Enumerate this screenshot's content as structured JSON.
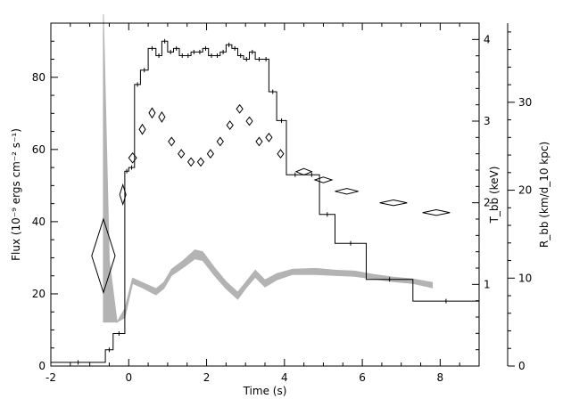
{
  "chart_data": {
    "type": "line",
    "xlabel": "Time (s)",
    "xlim": [
      -2,
      9
    ],
    "x_ticks": [
      -2,
      0,
      2,
      4,
      6,
      8
    ],
    "axes": {
      "flux": {
        "label": "Flux (10⁻⁹ ergs cm⁻² s⁻¹)",
        "lim": [
          0,
          95
        ],
        "ticks": [
          0,
          20,
          40,
          60,
          80
        ]
      },
      "tbb": {
        "label": "T_bb (keV)",
        "lim": [
          0,
          4.2
        ],
        "ticks": [
          1,
          2,
          3,
          4
        ]
      },
      "rbb": {
        "label": "R_bb (km/d_10 kpc)",
        "lim": [
          0,
          39
        ],
        "ticks": [
          0,
          10,
          20,
          30
        ]
      }
    },
    "series": [
      {
        "style": "histogram",
        "axis": "flux",
        "color": "#000000",
        "points": [
          [
            -2.0,
            -0.6,
            1
          ],
          [
            -0.6,
            -0.4,
            4.5
          ],
          [
            -0.4,
            -0.1,
            9
          ],
          [
            -0.1,
            0.0,
            54
          ],
          [
            0.0,
            0.15,
            55
          ],
          [
            0.15,
            0.3,
            78
          ],
          [
            0.3,
            0.5,
            82
          ],
          [
            0.5,
            0.7,
            88
          ],
          [
            0.7,
            0.85,
            86
          ],
          [
            0.85,
            1.0,
            90
          ],
          [
            1.0,
            1.15,
            87
          ],
          [
            1.15,
            1.3,
            88
          ],
          [
            1.3,
            1.45,
            86
          ],
          [
            1.45,
            1.6,
            86
          ],
          [
            1.6,
            1.75,
            87
          ],
          [
            1.75,
            1.9,
            87
          ],
          [
            1.9,
            2.05,
            88
          ],
          [
            2.05,
            2.2,
            86
          ],
          [
            2.2,
            2.35,
            86
          ],
          [
            2.35,
            2.5,
            87
          ],
          [
            2.5,
            2.65,
            89
          ],
          [
            2.65,
            2.8,
            88
          ],
          [
            2.8,
            2.95,
            86
          ],
          [
            2.95,
            3.1,
            85
          ],
          [
            3.1,
            3.25,
            87
          ],
          [
            3.25,
            3.45,
            85
          ],
          [
            3.45,
            3.6,
            85
          ],
          [
            3.6,
            3.8,
            76
          ],
          [
            3.8,
            4.05,
            68
          ],
          [
            4.05,
            4.5,
            53
          ],
          [
            4.5,
            4.9,
            53
          ],
          [
            4.9,
            5.3,
            42
          ],
          [
            5.3,
            6.1,
            34
          ],
          [
            6.1,
            7.3,
            24
          ],
          [
            7.3,
            9.0,
            18
          ]
        ]
      },
      {
        "style": "diamonds",
        "axis": "tbb",
        "color": "#000000",
        "points": [
          [
            -0.65,
            1.35,
            0.3,
            0.45
          ],
          [
            -0.15,
            2.1,
            0.08,
            0.12
          ],
          [
            0.1,
            2.55,
            0.1,
            0.06
          ],
          [
            0.35,
            2.9,
            0.08,
            0.06
          ],
          [
            0.6,
            3.1,
            0.08,
            0.06
          ],
          [
            0.85,
            3.05,
            0.08,
            0.06
          ],
          [
            1.1,
            2.75,
            0.08,
            0.05
          ],
          [
            1.35,
            2.6,
            0.08,
            0.05
          ],
          [
            1.6,
            2.5,
            0.08,
            0.05
          ],
          [
            1.85,
            2.5,
            0.08,
            0.05
          ],
          [
            2.1,
            2.6,
            0.08,
            0.05
          ],
          [
            2.35,
            2.75,
            0.08,
            0.05
          ],
          [
            2.6,
            2.95,
            0.08,
            0.05
          ],
          [
            2.85,
            3.15,
            0.08,
            0.05
          ],
          [
            3.1,
            3.0,
            0.08,
            0.05
          ],
          [
            3.35,
            2.75,
            0.08,
            0.05
          ],
          [
            3.6,
            2.8,
            0.08,
            0.05
          ],
          [
            3.9,
            2.6,
            0.08,
            0.05
          ],
          [
            4.5,
            2.38,
            0.2,
            0.04
          ],
          [
            5.0,
            2.28,
            0.22,
            0.035
          ],
          [
            5.6,
            2.14,
            0.3,
            0.035
          ],
          [
            6.8,
            2.0,
            0.35,
            0.035
          ],
          [
            7.9,
            1.88,
            0.35,
            0.035
          ]
        ]
      },
      {
        "style": "band",
        "axis": "rbb",
        "color": "#b3b3b3",
        "points": [
          [
            -0.65,
            5.0,
            40.0
          ],
          [
            -0.5,
            5.0,
            12.0
          ],
          [
            -0.3,
            5.0,
            5.0
          ],
          [
            -0.1,
            5.5,
            6.5
          ],
          [
            0.1,
            9.4,
            10.0
          ],
          [
            0.35,
            8.9,
            9.5
          ],
          [
            0.7,
            8.1,
            8.8
          ],
          [
            0.9,
            8.8,
            9.5
          ],
          [
            1.1,
            10.3,
            11.0
          ],
          [
            1.4,
            11.2,
            12.0
          ],
          [
            1.7,
            12.2,
            13.2
          ],
          [
            1.9,
            12.0,
            13.0
          ],
          [
            2.2,
            10.3,
            11.2
          ],
          [
            2.5,
            8.8,
            9.6
          ],
          [
            2.8,
            7.6,
            8.4
          ],
          [
            3.0,
            8.8,
            9.5
          ],
          [
            3.25,
            10.1,
            10.9
          ],
          [
            3.5,
            9.0,
            9.8
          ],
          [
            3.8,
            9.8,
            10.5
          ],
          [
            4.2,
            10.4,
            11.0
          ],
          [
            4.8,
            10.4,
            11.1
          ],
          [
            5.3,
            10.3,
            10.9
          ],
          [
            5.8,
            10.2,
            10.8
          ],
          [
            6.3,
            9.9,
            10.4
          ],
          [
            6.8,
            9.6,
            10.1
          ],
          [
            7.3,
            9.4,
            9.9
          ],
          [
            7.8,
            8.9,
            9.5
          ]
        ]
      }
    ]
  }
}
